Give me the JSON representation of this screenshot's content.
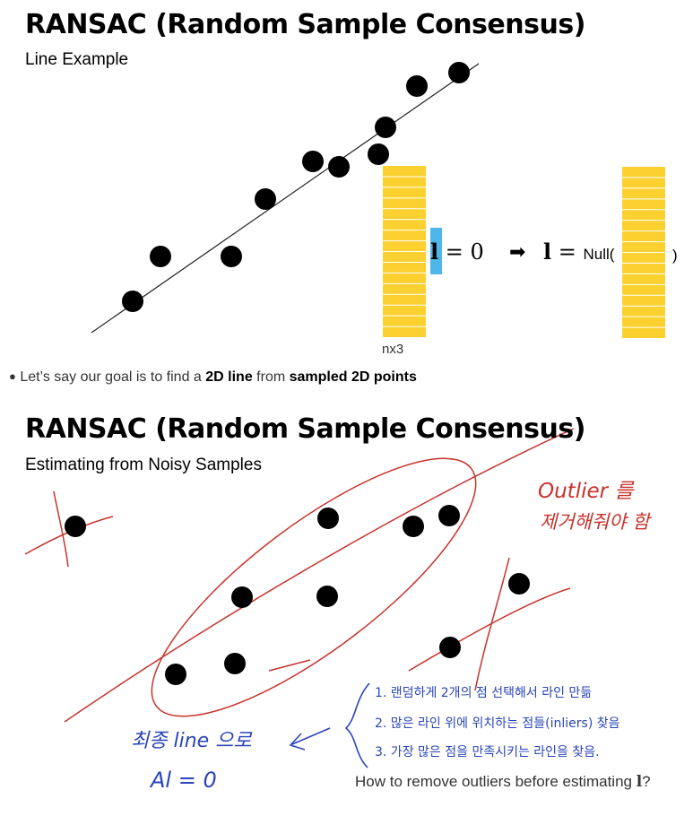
{
  "slide1": {
    "title": "RANSAC (Random Sample Consensus)",
    "subtitle": "Line Example",
    "matrix_label": "nx3",
    "eq1_symbol": "l",
    "eq1_rest": "= 0",
    "arrow": "➡",
    "eq2_symbol": "l",
    "eq2_equals": "=",
    "eq2_null_open": "Null(",
    "eq2_null_close": ")",
    "bullet_text_1": "Let’s say our goal is to find a ",
    "bullet_bold_1": "2D line",
    "bullet_text_2": " from ",
    "bullet_bold_2": "sampled 2D points"
  },
  "slide2": {
    "title": "RANSAC (Random Sample Consensus)",
    "subtitle": "Estimating from Noisy Samples",
    "annotation_red_1": "Outlier 를",
    "annotation_red_2": "제거해줘야 함",
    "steps": [
      "1. 랜덤하게 2개의 점 선택해서 라인 만듦",
      "2. 많은 라인 위에 위치하는 점들(inliers) 찾음",
      "3. 가장 많은 점을 만족시키는 라인을 찾음."
    ],
    "annotation_blue_1": "최종 line 으로",
    "annotation_blue_2": "Al = 0",
    "question_text": "How to remove outliers before estimating ",
    "question_symbol": "l",
    "question_end": "?"
  },
  "colors": {
    "matrix_yellow": "#fcd02f",
    "matrix_blue": "#4fb6ea",
    "annotation_red": "#c8322b",
    "annotation_blue": "#2a45b8"
  }
}
